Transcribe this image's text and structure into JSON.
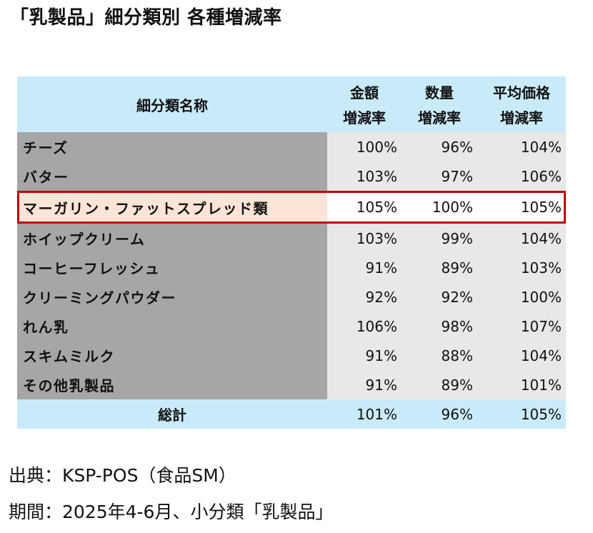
{
  "title": "「乳製品」細分類別 各種増減率",
  "table": {
    "header": {
      "name": "細分類名称",
      "col1": [
        "金額",
        "増減率"
      ],
      "col2": [
        "数量",
        "増減率"
      ],
      "col3": [
        "平均価格",
        "増減率"
      ]
    },
    "rows": [
      {
        "name": "チーズ",
        "v1": "100%",
        "v2": "96%",
        "v3": "104%"
      },
      {
        "name": "バター",
        "v1": "103%",
        "v2": "97%",
        "v3": "106%"
      },
      {
        "name": "マーガリン・ファットスプレッド類",
        "v1": "105%",
        "v2": "100%",
        "v3": "105%"
      },
      {
        "name": "ホイップクリーム",
        "v1": "103%",
        "v2": "99%",
        "v3": "104%"
      },
      {
        "name": "コーヒーフレッシュ",
        "v1": "91%",
        "v2": "89%",
        "v3": "103%"
      },
      {
        "name": "クリーミングパウダー",
        "v1": "92%",
        "v2": "92%",
        "v3": "100%"
      },
      {
        "name": "れん乳",
        "v1": "106%",
        "v2": "98%",
        "v3": "107%"
      },
      {
        "name": "スキムミルク",
        "v1": "91%",
        "v2": "88%",
        "v3": "104%"
      },
      {
        "name": "その他乳製品",
        "v1": "91%",
        "v2": "89%",
        "v3": "101%"
      }
    ],
    "total": {
      "name": "総計",
      "v1": "101%",
      "v2": "96%",
      "v3": "105%"
    }
  },
  "footer": {
    "source": "出典：KSP-POS（食品SM）",
    "period": "期間：2025年4-6月、小分類「乳製品」"
  },
  "colors": {
    "header_bg": "#c9ebf9",
    "name_bg": "#a6a6a6",
    "value_bg": "#e8e8e8",
    "highlight_name_bg": "#fde4d6",
    "highlight_border": "#c0000b"
  }
}
